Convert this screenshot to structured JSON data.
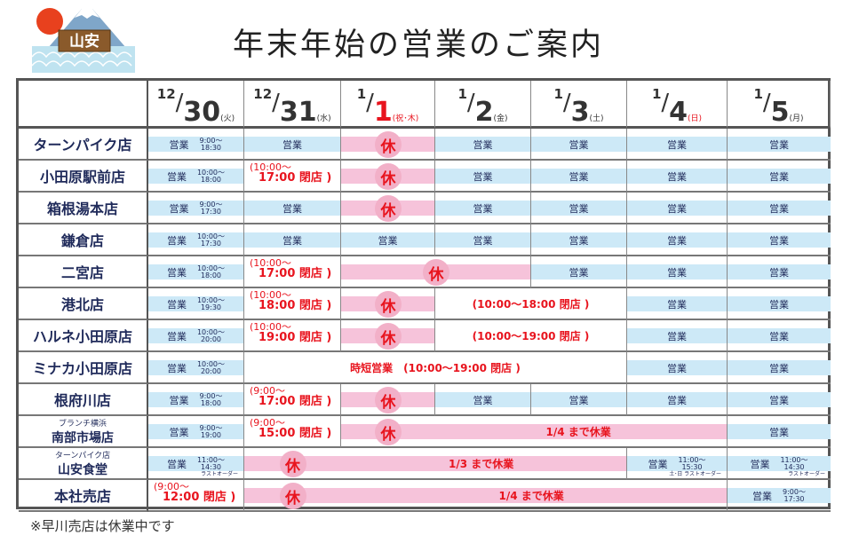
{
  "logo": {
    "text": "山安"
  },
  "title": "年末年始の営業のご案内",
  "colors": {
    "open": "#cde9f7",
    "closed": "#f6c3da",
    "red": "#e8141e",
    "navy": "#1f2a5a"
  },
  "dates": [
    {
      "m": "12",
      "d": "30",
      "w": "(火)",
      "holiday": false
    },
    {
      "m": "12",
      "d": "31",
      "w": "(水)",
      "holiday": false
    },
    {
      "m": "1",
      "d": "1",
      "w": "(祝･木)",
      "holiday": true
    },
    {
      "m": "1",
      "d": "2",
      "w": "(金)",
      "holiday": false
    },
    {
      "m": "1",
      "d": "3",
      "w": "(土)",
      "holiday": false
    },
    {
      "m": "1",
      "d": "4",
      "w": "(日)",
      "holiday": true
    },
    {
      "m": "1",
      "d": "5",
      "w": "(月)",
      "holiday": false
    }
  ],
  "rows": [
    {
      "store": "ターンパイク店",
      "cells": [
        {
          "t": "open",
          "text": "営業",
          "time": [
            "9:00〜",
            "18:30"
          ]
        },
        {
          "t": "open",
          "text": "営業"
        },
        {
          "t": "closed",
          "mark": "休"
        },
        {
          "t": "open",
          "text": "営業"
        },
        {
          "t": "open",
          "text": "営業"
        },
        {
          "t": "open",
          "text": "営業"
        },
        {
          "t": "open",
          "text": "営業"
        }
      ]
    },
    {
      "store": "小田原駅前店",
      "cells": [
        {
          "t": "open",
          "text": "営業",
          "time": [
            "10:00〜",
            "18:00"
          ]
        },
        {
          "t": "red",
          "l1": "(10:00〜",
          "l2": "17:00 閉店 )"
        },
        {
          "t": "closed",
          "mark": "休"
        },
        {
          "t": "open",
          "text": "営業"
        },
        {
          "t": "open",
          "text": "営業"
        },
        {
          "t": "open",
          "text": "営業"
        },
        {
          "t": "open",
          "text": "営業"
        }
      ]
    },
    {
      "store": "箱根湯本店",
      "cells": [
        {
          "t": "open",
          "text": "営業",
          "time": [
            "9:00〜",
            "17:30"
          ]
        },
        {
          "t": "open",
          "text": "営業"
        },
        {
          "t": "closed",
          "mark": "休"
        },
        {
          "t": "open",
          "text": "営業"
        },
        {
          "t": "open",
          "text": "営業"
        },
        {
          "t": "open",
          "text": "営業"
        },
        {
          "t": "open",
          "text": "営業"
        }
      ]
    },
    {
      "store": "鎌倉店",
      "cells": [
        {
          "t": "open",
          "text": "営業",
          "time": [
            "10:00〜",
            "17:30"
          ]
        },
        {
          "t": "open",
          "text": "営業"
        },
        {
          "t": "open",
          "text": "営業"
        },
        {
          "t": "open",
          "text": "営業"
        },
        {
          "t": "open",
          "text": "営業"
        },
        {
          "t": "open",
          "text": "営業"
        },
        {
          "t": "open",
          "text": "営業"
        }
      ]
    },
    {
      "store": "二宮店",
      "cells": [
        {
          "t": "open",
          "text": "営業",
          "time": [
            "10:00〜",
            "18:00"
          ]
        },
        {
          "t": "red",
          "l1": "(10:00〜",
          "l2": "17:00 閉店 )"
        },
        {
          "t": "closed",
          "span": 2,
          "mark": "休",
          "center": true
        },
        {
          "t": "open",
          "text": "営業"
        },
        {
          "t": "open",
          "text": "営業"
        },
        {
          "t": "open",
          "text": "営業"
        }
      ]
    },
    {
      "store": "港北店",
      "cells": [
        {
          "t": "open",
          "text": "営業",
          "time": [
            "10:00〜",
            "19:30"
          ]
        },
        {
          "t": "red",
          "l1": "(10:00〜",
          "l2": "18:00 閉店 )"
        },
        {
          "t": "closed",
          "mark": "休"
        },
        {
          "t": "white",
          "span": 2,
          "text": "(10:00〜18:00 閉店 )"
        },
        {
          "t": "open",
          "text": "営業"
        },
        {
          "t": "open",
          "text": "営業"
        }
      ]
    },
    {
      "store": "ハルネ小田原店",
      "cells": [
        {
          "t": "open",
          "text": "営業",
          "time": [
            "10:00〜",
            "20:00"
          ]
        },
        {
          "t": "red",
          "l1": "(10:00〜",
          "l2": "19:00 閉店 )"
        },
        {
          "t": "closed",
          "mark": "休"
        },
        {
          "t": "white",
          "span": 2,
          "text": "(10:00〜19:00 閉店 )"
        },
        {
          "t": "open",
          "text": "営業"
        },
        {
          "t": "open",
          "text": "営業"
        }
      ]
    },
    {
      "store": "ミナカ小田原店",
      "cells": [
        {
          "t": "open",
          "text": "営業",
          "time": [
            "10:00〜",
            "20:00"
          ]
        },
        {
          "t": "white",
          "span": 4,
          "text": "時短営業　(10:00〜19:00 閉店 )"
        },
        {
          "t": "open",
          "text": "営業"
        },
        {
          "t": "open",
          "text": "営業"
        }
      ]
    },
    {
      "store": "根府川店",
      "cells": [
        {
          "t": "open",
          "text": "営業",
          "time": [
            "9:00〜",
            "18:00"
          ]
        },
        {
          "t": "red",
          "l1": "(9:00〜",
          "l2": "17:00 閉店 )"
        },
        {
          "t": "closed",
          "mark": "休"
        },
        {
          "t": "open",
          "text": "営業"
        },
        {
          "t": "open",
          "text": "営業"
        },
        {
          "t": "open",
          "text": "営業"
        },
        {
          "t": "open",
          "text": "営業"
        }
      ]
    },
    {
      "store_sub": "ブランチ横浜",
      "store": "南部市場店",
      "cells": [
        {
          "t": "open",
          "text": "営業",
          "time": [
            "9:00〜",
            "19:00"
          ]
        },
        {
          "t": "red",
          "l1": "(9:00〜",
          "l2": "15:00 閉店 )"
        },
        {
          "t": "closed",
          "span": 4,
          "mark": "休",
          "text": "1/4 まで休業"
        },
        {
          "t": "open",
          "text": "営業"
        }
      ]
    },
    {
      "store_sub": "ターンパイク店",
      "store": "山安食堂",
      "cells": [
        {
          "t": "open",
          "text": "営業",
          "time": [
            "11:00〜",
            "14:30"
          ],
          "note": "ラストオーダー"
        },
        {
          "t": "closed",
          "span": 4,
          "mark": "休",
          "text": "1/3 まで休業"
        },
        {
          "t": "open",
          "text": "営業",
          "time": [
            "11:00〜",
            "15:30"
          ],
          "note": "土･日 ラストオーダー"
        },
        {
          "t": "open",
          "text": "営業",
          "time": [
            "11:00〜",
            "14:30"
          ],
          "note": "ラストオーダー"
        }
      ]
    },
    {
      "store": "本社売店",
      "cells": [
        {
          "t": "red",
          "l1": "(9:00〜",
          "l2": "12:00 閉店 )"
        },
        {
          "t": "closed",
          "span": 5,
          "mark": "休",
          "text": "1/4 まで休業"
        },
        {
          "t": "open",
          "text": "営業",
          "time": [
            "9:00〜",
            "17:30"
          ]
        }
      ]
    }
  ],
  "footnote": "※早川売店は休業中です"
}
